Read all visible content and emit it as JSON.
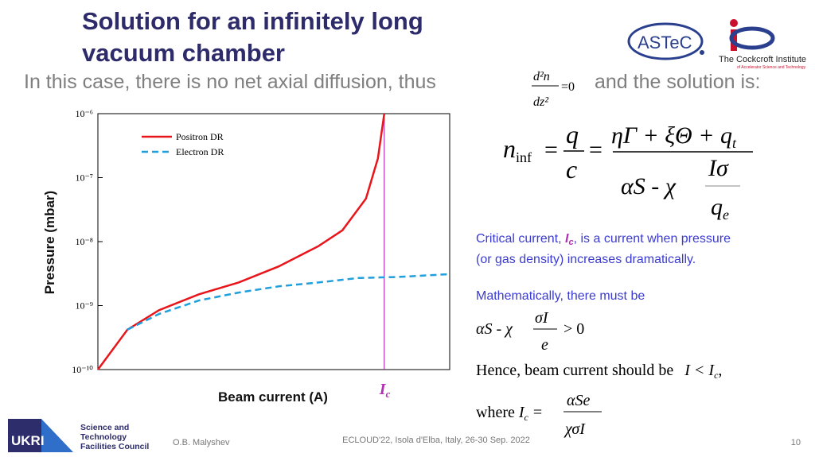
{
  "header": {
    "title_lines": [
      "Solution for an infinitely long",
      "vacuum chamber"
    ],
    "intro_before": "In this case, there is no net axial diffusion, thus",
    "intro_num": "d²n",
    "intro_den": "dz²",
    "intro_eq": "=0",
    "intro_after": "and the solution is:"
  },
  "logos": {
    "astec": "ASTeC",
    "cockcroft": "The Cockcroft Institute",
    "cockcroft_sub": "of Accelerator Science and Technology"
  },
  "equation_main": {
    "lhs": "n",
    "lhs_sub": "inf",
    "eq1": "=",
    "q": "q",
    "c": "c",
    "eq2": "=",
    "numerator": "ηΓ + ξΘ + q",
    "numerator_sub": "t",
    "den_left": "αS - χ",
    "den_num": "Iσ",
    "den_den": "q",
    "den_den_sub": "e"
  },
  "notes": {
    "critical_a": "Critical current, ",
    "critical_i": "I",
    "critical_sub": "c",
    "critical_b": ", is a current when pressure",
    "critical_line2": "(or gas density) increases dramatically.",
    "math": "Mathematically, there must be",
    "cond_left": "αS - χ",
    "cond_num": "σI",
    "cond_den": "e",
    "cond_right": "> 0",
    "hence": "Hence, beam current should be",
    "hence_eq": "I < I",
    "hence_sub": "c",
    "hence_end": ",",
    "where": "where",
    "where_ic": "I",
    "where_sub": "c",
    "where_eq": "=",
    "where_num": "αSe",
    "where_den": "χσI"
  },
  "chart_data": {
    "type": "line",
    "xlabel": "Beam current (A)",
    "ylabel": "Pressure (mbar)",
    "log_y": true,
    "xlim": [
      0,
      100
    ],
    "ylim": [
      1e-10,
      1e-06
    ],
    "yticks": [
      {
        "value": 1e-10,
        "label": "10⁻¹⁰"
      },
      {
        "value": 1e-09,
        "label": "10⁻⁹"
      },
      {
        "value": 1e-08,
        "label": "10⁻⁸"
      },
      {
        "value": 1e-07,
        "label": "10⁻⁷"
      },
      {
        "value": 1e-06,
        "label": "10⁻⁶"
      }
    ],
    "legend": "upper left",
    "series": [
      {
        "name": "Positron DR",
        "color": "#e8161b",
        "dash": false,
        "x": [
          0,
          8.4,
          17.4,
          28.7,
          40,
          51.4,
          62.7,
          69.5,
          76.2,
          79.6,
          81.4
        ],
        "values": [
          1e-10,
          4.2e-10,
          8.5e-10,
          1.5e-09,
          2.3e-09,
          4.1e-09,
          8.5e-09,
          1.5e-08,
          4.7e-08,
          2e-07,
          1e-06
        ]
      },
      {
        "name": "Electron DR",
        "color": "#1f9fdc",
        "dash": true,
        "x": [
          8.4,
          17.4,
          28.7,
          40,
          51.4,
          62.7,
          74,
          85.3,
          100
        ],
        "values": [
          4.2e-10,
          7.4e-10,
          1.2e-09,
          1.6e-09,
          2e-09,
          2.3e-09,
          2.7e-09,
          2.8e-09,
          3.1e-09
        ]
      }
    ],
    "annotation": {
      "text": "I",
      "sub": "c",
      "x": 81.4,
      "color": "#b52fb5"
    }
  },
  "footer": {
    "ukri": "UKRI",
    "council_lines": [
      "Science and",
      "Technology",
      "Facilities Council"
    ],
    "author": "O.B. Malyshev",
    "event": "ECLOUD'22, Isola d'Elba, Italy, 26-30 Sep. 2022",
    "page": "10"
  }
}
